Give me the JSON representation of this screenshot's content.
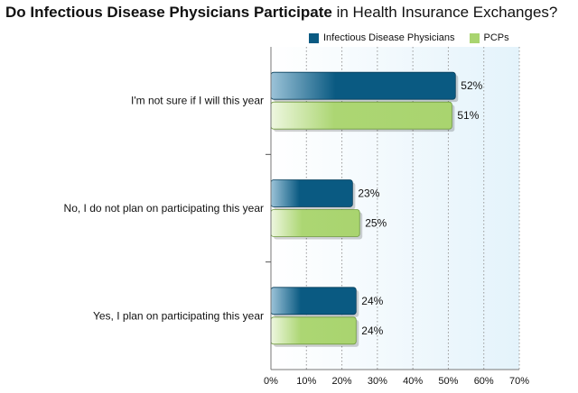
{
  "title_bold": "Do Infectious Disease Physicians Participate",
  "title_rest": " in Health Insurance Exchanges?",
  "chart_data": {
    "type": "bar",
    "orientation": "horizontal",
    "categories": [
      "I'm not sure if I will this year",
      "No, I do not plan on participating this year",
      "Yes, I plan on participating this year"
    ],
    "series": [
      {
        "name": "Infectious Disease Physicians",
        "values": [
          52,
          23,
          24
        ],
        "labels": [
          "52%",
          "23%",
          "24%"
        ],
        "color": "#0a5a82"
      },
      {
        "name": "PCPs",
        "values": [
          51,
          25,
          24
        ],
        "labels": [
          "51%",
          "25%",
          "24%"
        ],
        "color": "#a9d46f"
      }
    ],
    "xlim": [
      0,
      70
    ],
    "xticks": [
      "0%",
      "10%",
      "20%",
      "30%",
      "40%",
      "50%",
      "60%",
      "70%"
    ],
    "legend_position": "top-right",
    "grid": true
  }
}
